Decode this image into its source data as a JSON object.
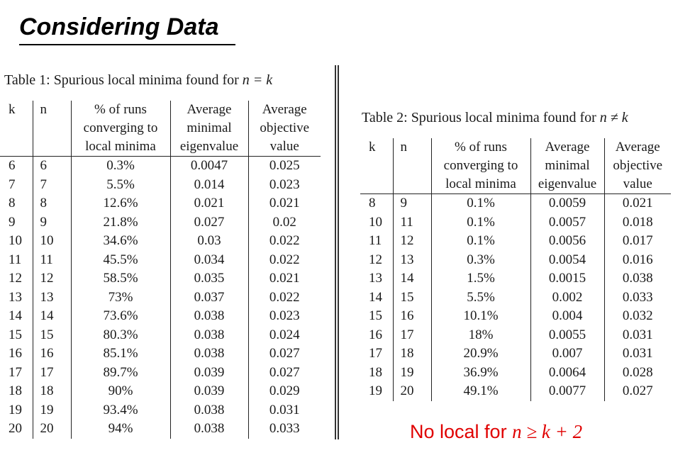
{
  "slide": {
    "title": "Considering Data",
    "note_prefix": "No local for ",
    "note_math": "n ≥ k + 2"
  },
  "table1": {
    "caption_text": "Table 1: Spurious local minima found for ",
    "caption_math": "n = k",
    "headers": [
      [
        "k",
        "n",
        "% of runs",
        "Average",
        "Average"
      ],
      [
        "",
        "",
        "converging to",
        "minimal",
        "objective"
      ],
      [
        "",
        "",
        "local minima",
        "eigenvalue",
        "value"
      ]
    ],
    "rows": [
      [
        "6",
        "6",
        "0.3%",
        "0.0047",
        "0.025"
      ],
      [
        "7",
        "7",
        "5.5%",
        "0.014",
        "0.023"
      ],
      [
        "8",
        "8",
        "12.6%",
        "0.021",
        "0.021"
      ],
      [
        "9",
        "9",
        "21.8%",
        "0.027",
        "0.02"
      ],
      [
        "10",
        "10",
        "34.6%",
        "0.03",
        "0.022"
      ],
      [
        "11",
        "11",
        "45.5%",
        "0.034",
        "0.022"
      ],
      [
        "12",
        "12",
        "58.5%",
        "0.035",
        "0.021"
      ],
      [
        "13",
        "13",
        "73%",
        "0.037",
        "0.022"
      ],
      [
        "14",
        "14",
        "73.6%",
        "0.038",
        "0.023"
      ],
      [
        "15",
        "15",
        "80.3%",
        "0.038",
        "0.024"
      ],
      [
        "16",
        "16",
        "85.1%",
        "0.038",
        "0.027"
      ],
      [
        "17",
        "17",
        "89.7%",
        "0.039",
        "0.027"
      ],
      [
        "18",
        "18",
        "90%",
        "0.039",
        "0.029"
      ],
      [
        "19",
        "19",
        "93.4%",
        "0.038",
        "0.031"
      ],
      [
        "20",
        "20",
        "94%",
        "0.038",
        "0.033"
      ]
    ]
  },
  "table2": {
    "caption_text": "Table 2: Spurious local minima found for ",
    "caption_math": "n ≠ k",
    "headers": [
      [
        "k",
        "n",
        "% of runs",
        "Average",
        "Average"
      ],
      [
        "",
        "",
        "converging to",
        "minimal",
        "objective"
      ],
      [
        "",
        "",
        "local minima",
        "eigenvalue",
        "value"
      ]
    ],
    "rows": [
      [
        "8",
        "9",
        "0.1%",
        "0.0059",
        "0.021"
      ],
      [
        "10",
        "11",
        "0.1%",
        "0.0057",
        "0.018"
      ],
      [
        "11",
        "12",
        "0.1%",
        "0.0056",
        "0.017"
      ],
      [
        "12",
        "13",
        "0.3%",
        "0.0054",
        "0.016"
      ],
      [
        "13",
        "14",
        "1.5%",
        "0.0015",
        "0.038"
      ],
      [
        "14",
        "15",
        "5.5%",
        "0.002",
        "0.033"
      ],
      [
        "15",
        "16",
        "10.1%",
        "0.004",
        "0.032"
      ],
      [
        "16",
        "17",
        "18%",
        "0.0055",
        "0.031"
      ],
      [
        "17",
        "18",
        "20.9%",
        "0.007",
        "0.031"
      ],
      [
        "18",
        "19",
        "36.9%",
        "0.0064",
        "0.028"
      ],
      [
        "19",
        "20",
        "49.1%",
        "0.0077",
        "0.027"
      ]
    ]
  }
}
